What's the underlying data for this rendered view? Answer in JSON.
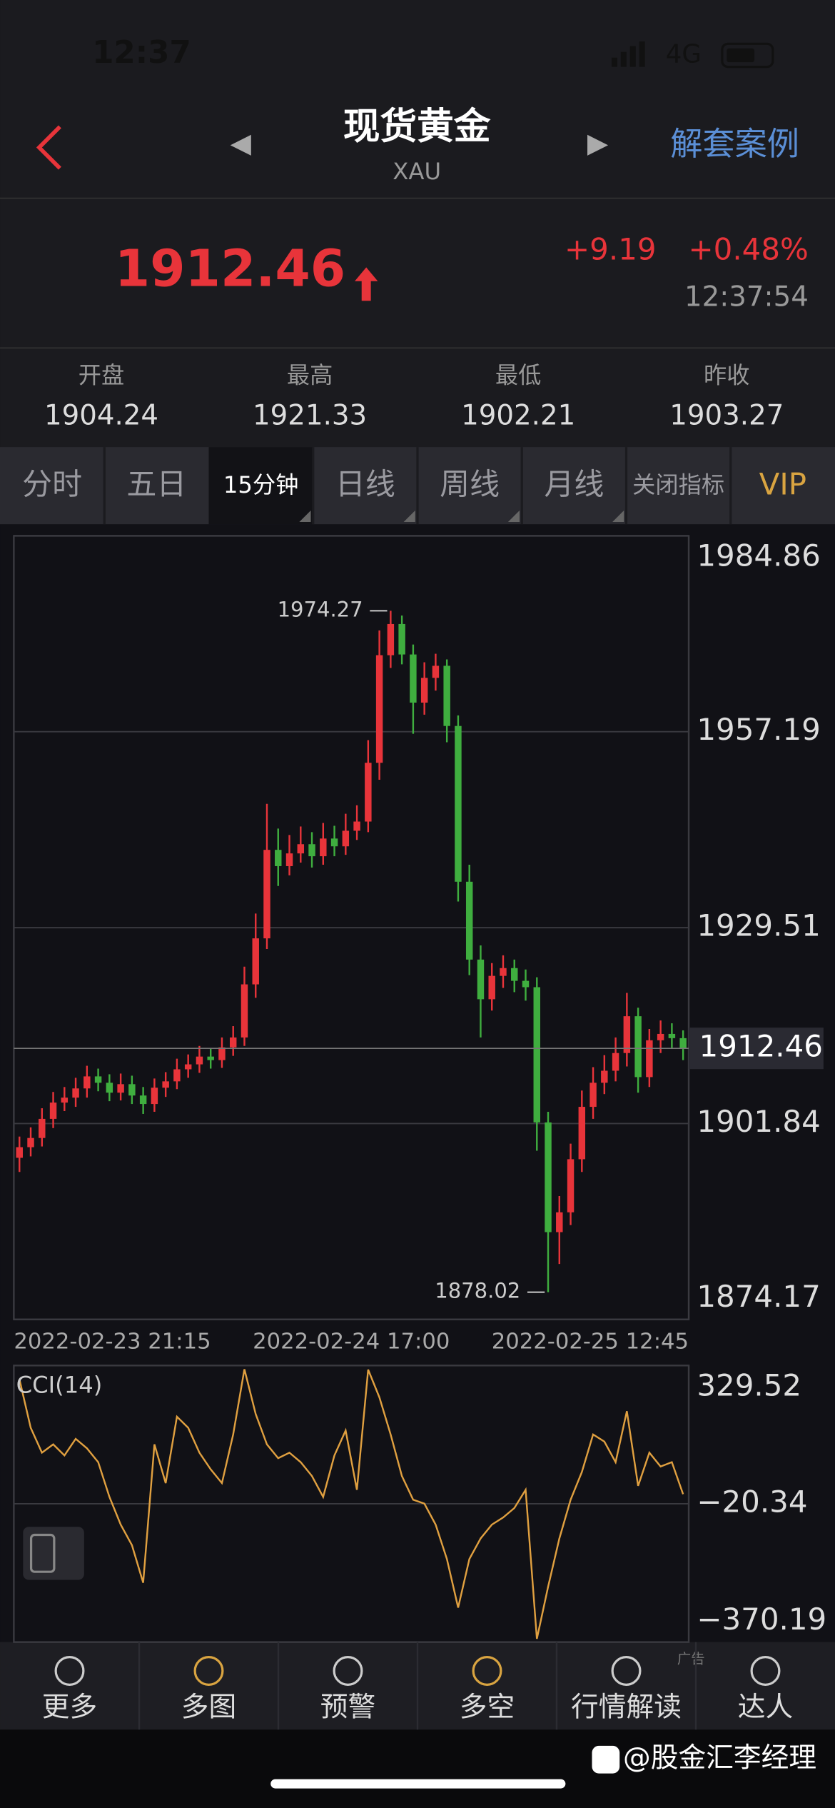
{
  "status_bar": {
    "time": "12:37",
    "network": "4G"
  },
  "header": {
    "title": "现货黄金",
    "subtitle": "XAU",
    "action": "解套案例"
  },
  "quote": {
    "price": 1912.46,
    "change": "+9.19",
    "change_pct": "+0.48%",
    "time": "12:37:54"
  },
  "stats": [
    {
      "label": "开盘",
      "value": 1904.24
    },
    {
      "label": "最高",
      "value": 1921.33
    },
    {
      "label": "最低",
      "value": 1902.21
    },
    {
      "label": "昨收",
      "value": 1903.27
    }
  ],
  "tabs": [
    "分时",
    "五日",
    "15分钟",
    "日线",
    "周线",
    "月线",
    "关闭指标",
    "VIP"
  ],
  "selected_tab": 2,
  "chart_data": [
    {
      "type": "candlestick",
      "up_color": "#e8343a",
      "down_color": "#3fae3f",
      "xticklabels": [
        "2022-02-23 21:15",
        "2022-02-24 17:00",
        "2022-02-25 12:45"
      ],
      "open": [
        1897.0,
        1898.5,
        1899.8,
        1902.5,
        1904.8,
        1905.5,
        1906.8,
        1908.5,
        1907.6,
        1906.2,
        1907.4,
        1905.8,
        1904.6,
        1906.9,
        1907.8,
        1909.5,
        1910.2,
        1911.3,
        1910.8,
        1912.6,
        1914.0,
        1921.5,
        1928.0,
        1940.5,
        1938.2,
        1940.0,
        1941.3,
        1939.6,
        1942.1,
        1941.0,
        1943.2,
        1944.5,
        1952.8,
        1968.0,
        1972.4,
        1968.1,
        1961.3,
        1964.8,
        1966.5,
        1958.0,
        1936.0,
        1925.0,
        1919.4,
        1922.7,
        1923.8,
        1922.0,
        1921.1,
        1902.0,
        1886.5,
        1889.3,
        1896.8,
        1904.2,
        1907.6,
        1909.3,
        1911.8,
        1917.0,
        1908.4,
        1913.6,
        1914.5,
        1913.9
      ],
      "high": [
        1900.0,
        1901.3,
        1904.0,
        1906.3,
        1907.0,
        1908.3,
        1910.0,
        1909.6,
        1908.8,
        1908.9,
        1908.6,
        1907.0,
        1908.2,
        1909.1,
        1911.0,
        1911.6,
        1912.8,
        1912.5,
        1914.0,
        1915.6,
        1924.0,
        1931.5,
        1947.0,
        1943.5,
        1942.6,
        1943.8,
        1943.0,
        1944.3,
        1943.9,
        1945.6,
        1946.8,
        1956.0,
        1971.5,
        1974.27,
        1973.6,
        1969.5,
        1967.0,
        1968.2,
        1967.4,
        1959.5,
        1938.4,
        1927.0,
        1924.5,
        1925.6,
        1925.0,
        1923.6,
        1922.5,
        1903.5,
        1891.6,
        1899.0,
        1906.5,
        1909.8,
        1911.5,
        1914.0,
        1920.3,
        1918.2,
        1915.2,
        1916.4,
        1916.0,
        1915.0
      ],
      "low": [
        1895.0,
        1897.2,
        1898.6,
        1901.2,
        1903.6,
        1904.2,
        1905.5,
        1906.4,
        1905.0,
        1905.1,
        1904.6,
        1903.2,
        1903.5,
        1905.6,
        1906.7,
        1908.3,
        1909.0,
        1909.6,
        1909.7,
        1911.4,
        1912.8,
        1919.6,
        1926.5,
        1935.4,
        1936.9,
        1938.7,
        1938.0,
        1938.4,
        1939.6,
        1939.8,
        1941.9,
        1943.0,
        1950.4,
        1966.2,
        1966.7,
        1956.9,
        1959.6,
        1963.0,
        1955.7,
        1933.2,
        1922.8,
        1914.0,
        1917.8,
        1921.0,
        1920.4,
        1919.2,
        1898.0,
        1878.02,
        1882.0,
        1887.5,
        1895.0,
        1902.5,
        1906.0,
        1907.8,
        1909.9,
        1906.2,
        1907.0,
        1911.8,
        1912.4,
        1910.8
      ],
      "close": [
        1898.5,
        1899.8,
        1902.5,
        1904.8,
        1905.5,
        1906.8,
        1908.5,
        1907.6,
        1906.2,
        1907.4,
        1905.8,
        1904.6,
        1906.9,
        1907.8,
        1909.5,
        1910.2,
        1911.3,
        1910.8,
        1912.6,
        1914.0,
        1921.5,
        1928.0,
        1940.5,
        1938.2,
        1940.0,
        1941.3,
        1939.6,
        1942.1,
        1941.0,
        1943.2,
        1944.5,
        1952.8,
        1968.0,
        1972.4,
        1968.1,
        1961.3,
        1964.8,
        1966.5,
        1958.0,
        1936.0,
        1925.0,
        1919.4,
        1922.7,
        1923.8,
        1922.0,
        1921.1,
        1902.0,
        1886.5,
        1889.3,
        1896.8,
        1904.2,
        1907.6,
        1909.3,
        1911.8,
        1917.0,
        1908.4,
        1913.6,
        1914.5,
        1913.9,
        1912.46
      ],
      "ylim": [
        1874.17,
        1984.86
      ],
      "yticks": [
        1874.17,
        1901.84,
        1929.51,
        1957.19,
        1984.86
      ],
      "grid": true
    },
    {
      "type": "line",
      "title": "CCI(14)",
      "color": "#e0a040",
      "values": [
        294.5,
        172,
        109,
        130,
        102,
        144,
        120,
        85,
        -3,
        -73,
        -125,
        -220,
        130,
        32,
        200,
        172,
        109,
        67,
        32,
        155,
        320,
        207,
        130,
        95,
        109,
        85,
        50,
        -3,
        102,
        165,
        15,
        319,
        249,
        155,
        50,
        -10,
        -20,
        -73,
        -160,
        -283,
        -160,
        -108,
        -73,
        -55,
        -31,
        15,
        -362,
        -230,
        -108,
        -10,
        60,
        155,
        137,
        85,
        214,
        25,
        109,
        74,
        85,
        4
      ],
      "ylim": [
        -370.19,
        329.52
      ],
      "yticks": [
        329.52,
        {
          "value": -20.34,
          "label": "−20.34"
        },
        {
          "value": -370.19,
          "label": "−370.19"
        }
      ],
      "grid": true
    }
  ],
  "nav": [
    "更多",
    "多图",
    "预警",
    "多空",
    "行情解读",
    "达人"
  ],
  "ad_label": "广告",
  "watermark": "@股金汇李经理"
}
